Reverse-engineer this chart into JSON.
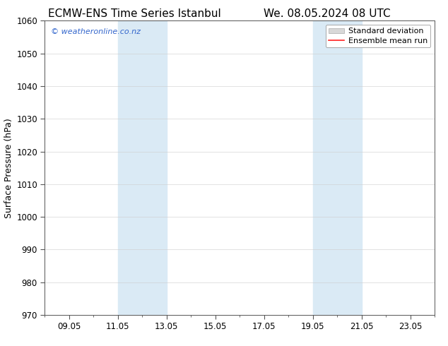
{
  "title_left": "ECMW-ENS Time Series Istanbul",
  "title_right": "We. 08.05.2024 08 UTC",
  "ylabel": "Surface Pressure (hPa)",
  "ylim": [
    970,
    1060
  ],
  "yticks": [
    970,
    980,
    990,
    1000,
    1010,
    1020,
    1030,
    1040,
    1050,
    1060
  ],
  "xtick_labels": [
    "09.05",
    "11.05",
    "13.05",
    "15.05",
    "17.05",
    "19.05",
    "21.05",
    "23.05"
  ],
  "xtick_positions": [
    1,
    3,
    5,
    7,
    9,
    11,
    13,
    15
  ],
  "x_min": 0,
  "x_max": 16,
  "shaded_regions": [
    {
      "x_start": 3,
      "x_end": 5,
      "color": "#daeaf5"
    },
    {
      "x_start": 11,
      "x_end": 13,
      "color": "#daeaf5"
    }
  ],
  "watermark_text": "© weatheronline.co.nz",
  "watermark_color": "#3366cc",
  "legend_items": [
    {
      "label": "Standard deviation",
      "type": "patch",
      "facecolor": "#d8d8d8",
      "edgecolor": "#aaaaaa"
    },
    {
      "label": "Ensemble mean run",
      "type": "line",
      "color": "#ff2222"
    }
  ],
  "bg_color": "#ffffff",
  "plot_bg_color": "#ffffff",
  "title_fontsize": 11,
  "ylabel_fontsize": 9,
  "tick_fontsize": 8.5,
  "legend_fontsize": 8,
  "watermark_fontsize": 8
}
